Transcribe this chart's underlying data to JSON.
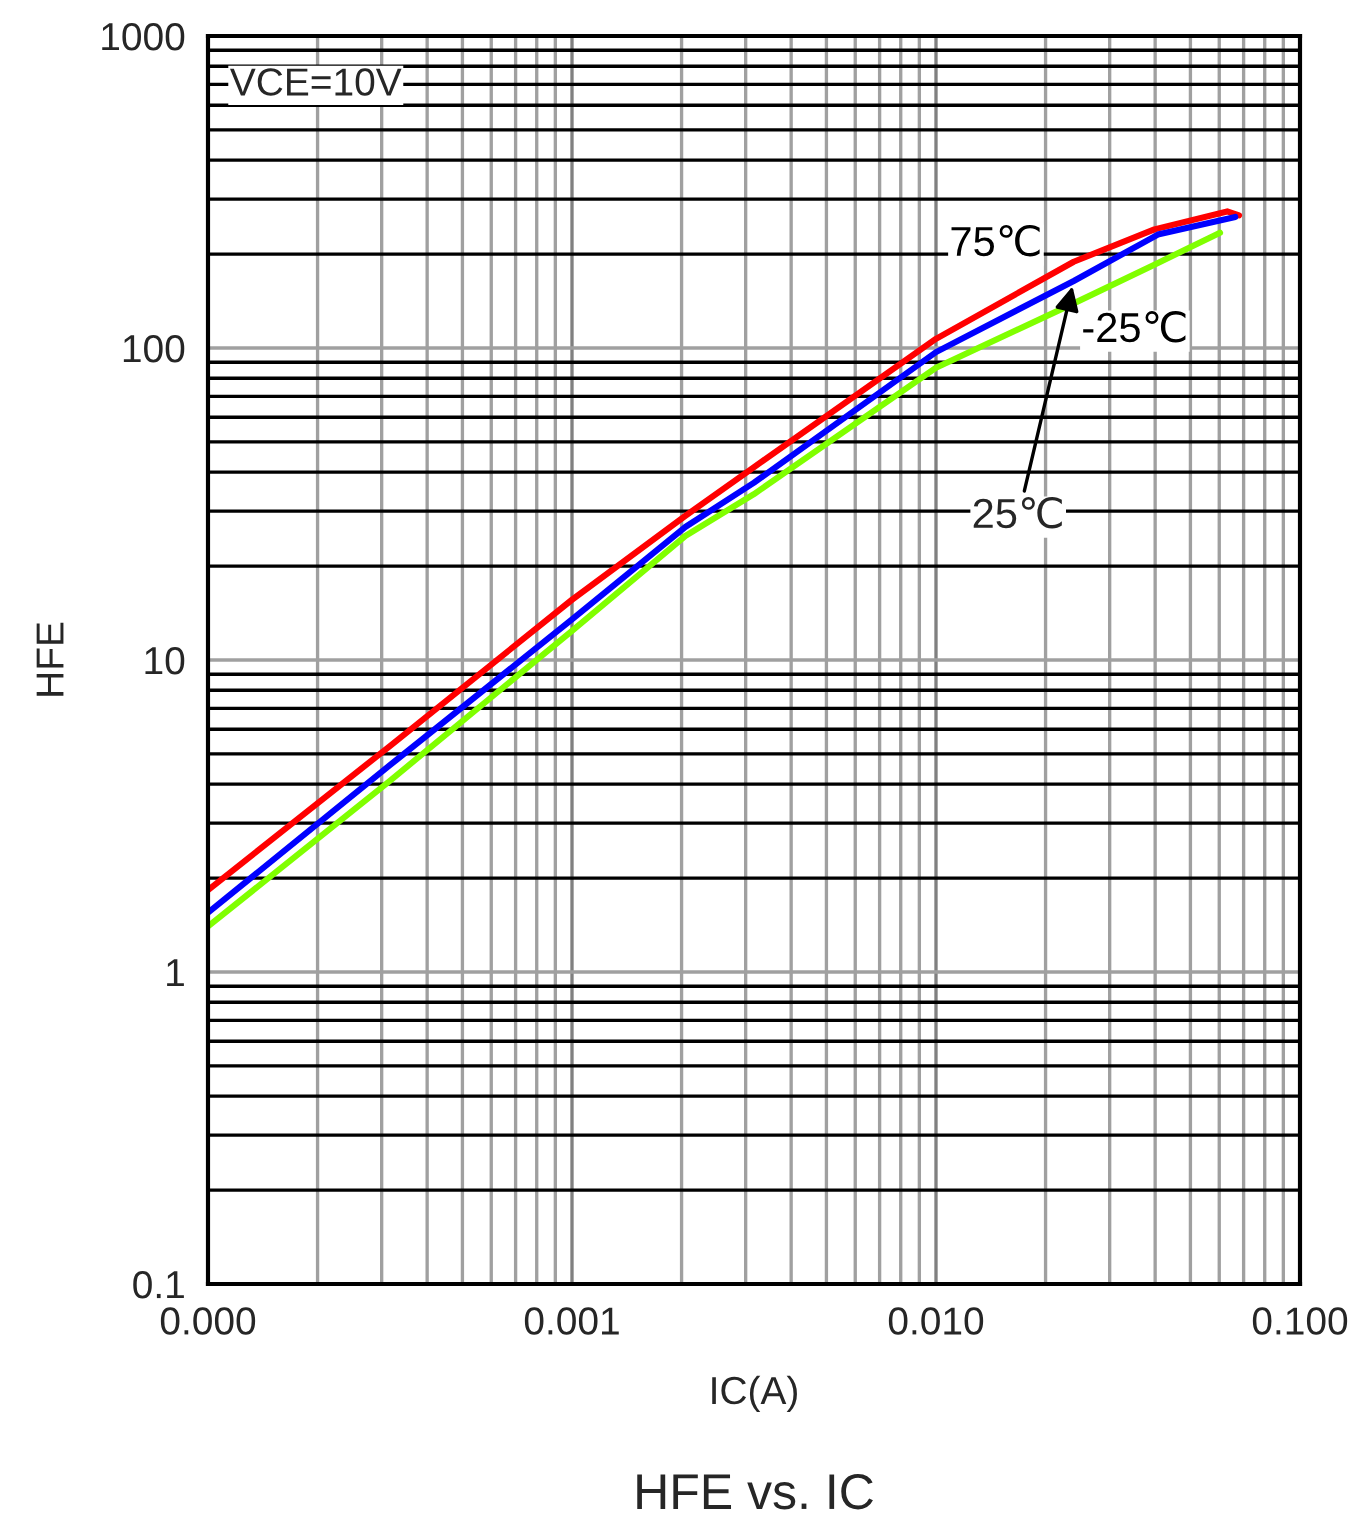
{
  "chart_data": {
    "type": "line",
    "title": "HFE vs. IC",
    "xlabel": "IC(A)",
    "ylabel": "HFE",
    "annotations": [
      "VCE=10V",
      {
        "text": "25℃",
        "x": 0.0239,
        "y": 164
      }
    ],
    "log": "xy",
    "grid": true,
    "legend": false,
    "marker": "none",
    "line_style": "solid",
    "xlim": [
      0.0001,
      0.1
    ],
    "xticks": [
      {
        "value": 0.0001,
        "label": "0.000"
      },
      {
        "value": 0.001,
        "label": "0.001"
      },
      {
        "value": 0.01,
        "label": "0.010"
      },
      {
        "value": 0.1,
        "label": "0.100"
      }
    ],
    "ylim": [
      0.1,
      1000
    ],
    "yticks": [
      0.1,
      1,
      10,
      100,
      1000
    ],
    "series": [
      {
        "name": "75℃",
        "color": "#ff0000",
        "x": [
          0.0001,
          0.000316,
          0.001,
          0.00205,
          0.00316,
          0.01,
          0.0239,
          0.0398,
          0.0631,
          0.068
        ],
        "values": [
          1.83,
          5.3,
          15.6,
          29,
          41.5,
          107,
          189,
          240,
          274,
          266
        ]
      },
      {
        "color": "#0000ff",
        "x": [
          0.0001,
          0.000316,
          0.001,
          0.00205,
          0.00316,
          0.01,
          0.0239,
          0.0407,
          0.0664
        ],
        "values": [
          1.55,
          4.6,
          13.5,
          26.7,
          37,
          97,
          164,
          231,
          263
        ]
      },
      {
        "name": "-25℃",
        "color": "#80ff00",
        "x": [
          0.0001,
          0.000316,
          0.001,
          0.00205,
          0.00316,
          0.01,
          0.0239,
          0.0398,
          0.0603
        ],
        "values": [
          1.4,
          4.1,
          12.4,
          25,
          34,
          86.5,
          139,
          185,
          234
        ]
      }
    ]
  }
}
